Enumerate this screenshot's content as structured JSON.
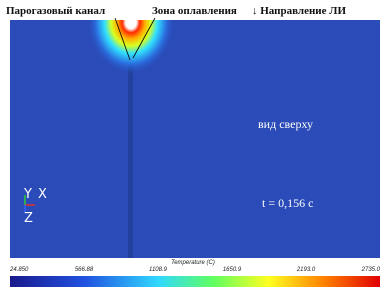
{
  "header": {
    "labels": [
      "Парогазовый канал",
      "Зона оплавления",
      "↓ Направление ЛИ"
    ]
  },
  "view": {
    "caption": "вид сверху",
    "time": "t = 0,156 с",
    "axes": [
      "Y",
      "X",
      "Z"
    ]
  },
  "colorbar": {
    "title": "Temperature (C)",
    "ticks": [
      "24.850",
      "566.88",
      "1108.9",
      "1650.9",
      "2193.0",
      "2735.0"
    ]
  }
}
